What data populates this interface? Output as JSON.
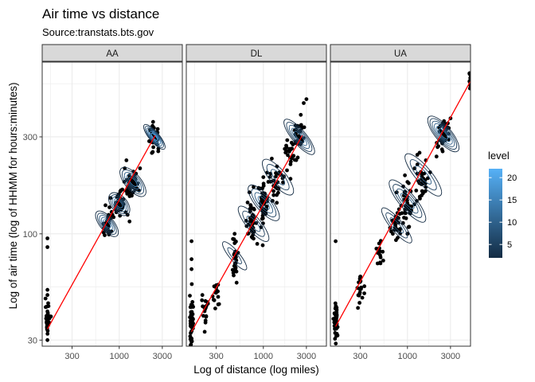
{
  "chart_data": {
    "type": "scatter",
    "title": "Air time vs distance",
    "subtitle": "Source:transtats.bts.gov",
    "xlabel": "Log of distance (log miles)",
    "ylabel": "Log of air time (log of HHMM for hours:minutes)",
    "x_scale": "log10",
    "y_scale": "log10",
    "xlim": [
      140,
      5000
    ],
    "ylim": [
      28,
      700
    ],
    "x_ticks": [
      300,
      1000,
      3000
    ],
    "x_tick_labels": [
      "300",
      "1000",
      "3000"
    ],
    "y_ticks": [
      30,
      100,
      300
    ],
    "y_tick_labels": [
      "30",
      "100",
      "300"
    ],
    "grid": true,
    "facets": [
      {
        "name": "AA",
        "fit_line": [
          [
            160,
            34
          ],
          [
            2500,
            305
          ]
        ],
        "clusters": [
          {
            "x": 160,
            "y": 38,
            "sx": 0.01,
            "sy": 0.035,
            "n": 40
          },
          {
            "x": 730,
            "y": 110,
            "sx": 0.03,
            "sy": 0.03,
            "n": 40
          },
          {
            "x": 1000,
            "y": 140,
            "sx": 0.04,
            "sy": 0.035,
            "n": 45
          },
          {
            "x": 1400,
            "y": 175,
            "sx": 0.04,
            "sy": 0.035,
            "n": 40
          },
          {
            "x": 2450,
            "y": 300,
            "sx": 0.025,
            "sy": 0.03,
            "n": 40
          }
        ],
        "points": [
          [
            160,
            95
          ],
          [
            160,
            86
          ],
          [
            160,
            50
          ],
          [
            160,
            53
          ],
          [
            160,
            30
          ],
          [
            800,
            150
          ],
          [
            780,
            135
          ],
          [
            1200,
            230
          ],
          [
            1150,
            210
          ],
          [
            1700,
            210
          ],
          [
            2300,
            250
          ],
          [
            1300,
            115
          ]
        ],
        "density": [
          {
            "x": 730,
            "y": 112,
            "rx": 0.035,
            "ry": 0.035,
            "levels": 5,
            "peak": 14
          },
          {
            "x": 1000,
            "y": 140,
            "rx": 0.04,
            "ry": 0.03,
            "levels": 5,
            "peak": 16
          },
          {
            "x": 1420,
            "y": 180,
            "rx": 0.04,
            "ry": 0.04,
            "levels": 5,
            "peak": 17
          },
          {
            "x": 2450,
            "y": 300,
            "rx": 0.025,
            "ry": 0.035,
            "levels": 6,
            "peak": 22
          }
        ]
      },
      {
        "name": "DL",
        "fit_line": [
          [
            160,
            33
          ],
          [
            2700,
            305
          ]
        ],
        "clusters": [
          {
            "x": 160,
            "y": 37,
            "sx": 0.01,
            "sy": 0.06,
            "n": 60
          },
          {
            "x": 230,
            "y": 42,
            "sx": 0.02,
            "sy": 0.04,
            "n": 18
          },
          {
            "x": 300,
            "y": 50,
            "sx": 0.02,
            "sy": 0.04,
            "n": 16
          },
          {
            "x": 480,
            "y": 75,
            "sx": 0.02,
            "sy": 0.05,
            "n": 25
          },
          {
            "x": 760,
            "y": 110,
            "sx": 0.03,
            "sy": 0.05,
            "n": 40
          },
          {
            "x": 1000,
            "y": 140,
            "sx": 0.03,
            "sy": 0.05,
            "n": 45
          },
          {
            "x": 1400,
            "y": 180,
            "sx": 0.04,
            "sy": 0.05,
            "n": 30
          },
          {
            "x": 2000,
            "y": 250,
            "sx": 0.04,
            "sy": 0.04,
            "n": 25
          },
          {
            "x": 2500,
            "y": 300,
            "sx": 0.03,
            "sy": 0.04,
            "n": 30
          }
        ],
        "points": [
          [
            160,
            92
          ],
          [
            160,
            67
          ],
          [
            160,
            75
          ],
          [
            480,
            100
          ],
          [
            480,
            90
          ],
          [
            700,
            160
          ],
          [
            780,
            170
          ],
          [
            1000,
            190
          ],
          [
            1100,
            200
          ],
          [
            1300,
            155
          ],
          [
            2400,
            340
          ],
          [
            2600,
            385
          ],
          [
            3000,
            460
          ],
          [
            2800,
            440
          ],
          [
            2000,
            220
          ]
        ],
        "density": [
          {
            "x": 480,
            "y": 78,
            "rx": 0.025,
            "ry": 0.04,
            "levels": 2,
            "peak": 6
          },
          {
            "x": 780,
            "y": 112,
            "rx": 0.035,
            "ry": 0.05,
            "levels": 3,
            "peak": 8
          },
          {
            "x": 1010,
            "y": 142,
            "rx": 0.04,
            "ry": 0.05,
            "levels": 4,
            "peak": 12
          },
          {
            "x": 1450,
            "y": 190,
            "rx": 0.04,
            "ry": 0.05,
            "levels": 3,
            "peak": 8
          },
          {
            "x": 2500,
            "y": 300,
            "rx": 0.035,
            "ry": 0.05,
            "levels": 5,
            "peak": 13
          }
        ]
      },
      {
        "name": "UA",
        "fit_line": [
          [
            160,
            35
          ],
          [
            4950,
            560
          ]
        ],
        "clusters": [
          {
            "x": 160,
            "y": 38,
            "sx": 0.01,
            "sy": 0.05,
            "n": 50
          },
          {
            "x": 300,
            "y": 55,
            "sx": 0.02,
            "sy": 0.04,
            "n": 20
          },
          {
            "x": 500,
            "y": 80,
            "sx": 0.02,
            "sy": 0.04,
            "n": 15
          },
          {
            "x": 760,
            "y": 110,
            "sx": 0.03,
            "sy": 0.04,
            "n": 30
          },
          {
            "x": 1000,
            "y": 140,
            "sx": 0.03,
            "sy": 0.05,
            "n": 40
          },
          {
            "x": 1400,
            "y": 190,
            "sx": 0.04,
            "sy": 0.05,
            "n": 30
          },
          {
            "x": 2500,
            "y": 310,
            "sx": 0.03,
            "sy": 0.04,
            "n": 40
          },
          {
            "x": 4950,
            "y": 570,
            "sx": 0.004,
            "sy": 0.02,
            "n": 18
          }
        ],
        "points": [
          [
            160,
            92
          ],
          [
            760,
            160
          ],
          [
            1000,
            180
          ],
          [
            1200,
            210
          ],
          [
            1600,
            230
          ],
          [
            2100,
            240
          ],
          [
            3000,
            370
          ],
          [
            2800,
            350
          ],
          [
            2200,
            270
          ],
          [
            1000,
            100
          ]
        ],
        "density": [
          {
            "x": 760,
            "y": 110,
            "rx": 0.03,
            "ry": 0.05,
            "levels": 3,
            "peak": 8
          },
          {
            "x": 1000,
            "y": 145,
            "rx": 0.04,
            "ry": 0.06,
            "levels": 4,
            "peak": 10
          },
          {
            "x": 1500,
            "y": 195,
            "rx": 0.04,
            "ry": 0.06,
            "levels": 3,
            "peak": 9
          },
          {
            "x": 2500,
            "y": 310,
            "rx": 0.04,
            "ry": 0.05,
            "levels": 6,
            "peak": 16
          }
        ]
      }
    ],
    "legend": {
      "title": "level",
      "position": "right",
      "ticks": [
        5,
        10,
        15,
        20
      ],
      "tick_labels": [
        "5",
        "10",
        "15",
        "20"
      ],
      "range": [
        2,
        22
      ],
      "colors": [
        "#132b43",
        "#56b1f7"
      ]
    },
    "colors": {
      "points": "#000000",
      "fit_line": "#ff0000",
      "strip_fill": "#d9d9d9",
      "grid": "#ebebeb",
      "panel_border": "#333333"
    }
  }
}
